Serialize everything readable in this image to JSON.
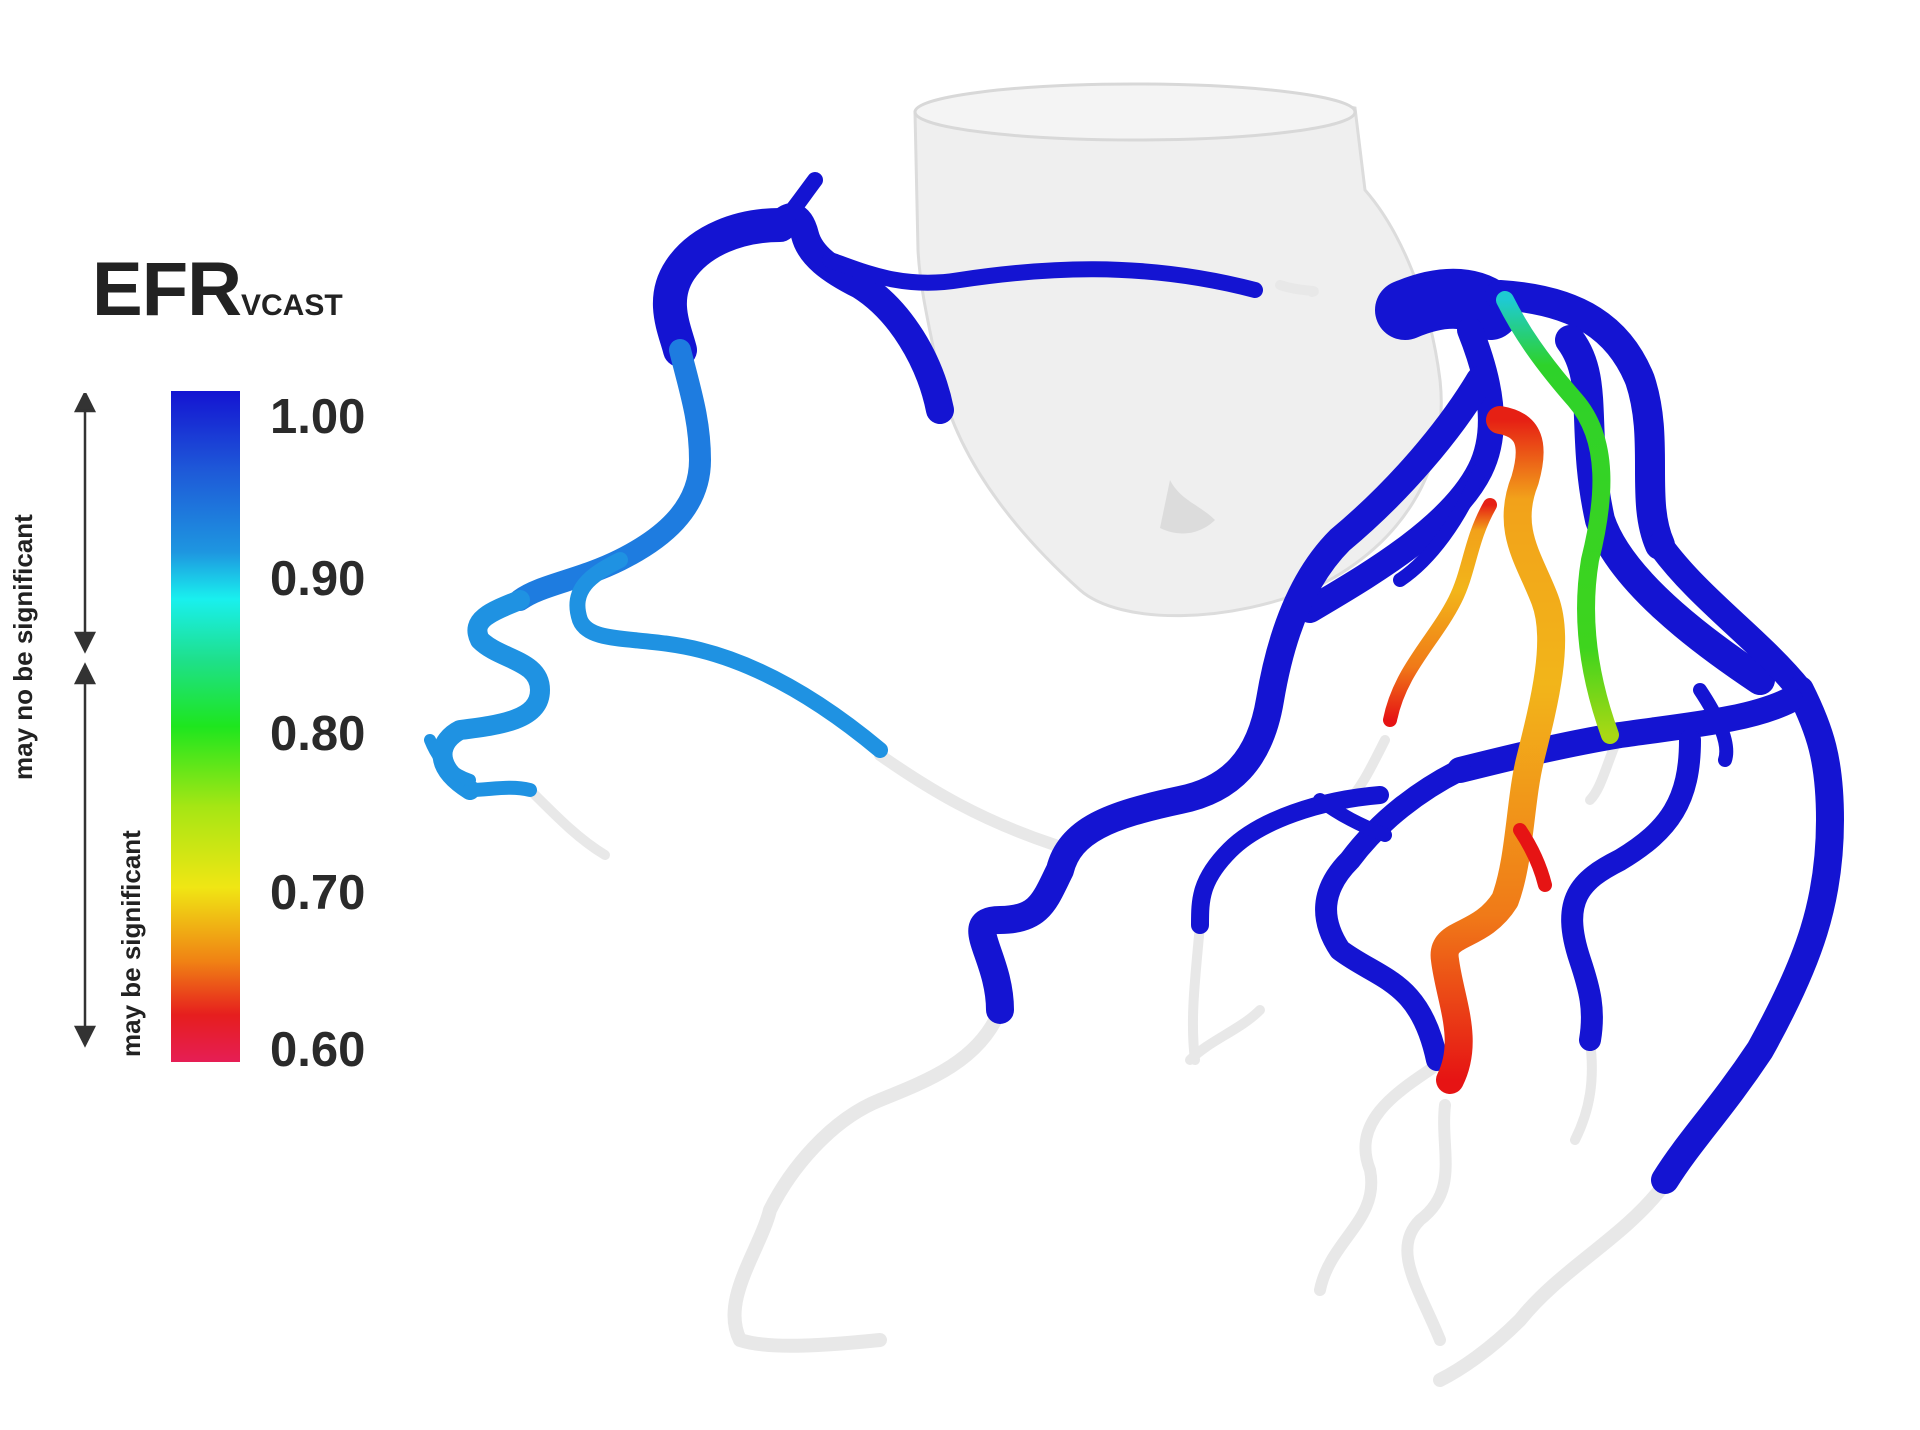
{
  "legend": {
    "title_main": "EFR",
    "title_sub": "VCAST",
    "ticks": [
      "1.00",
      "0.90",
      "0.80",
      "0.70",
      "0.60"
    ],
    "label_upper": "may no be significant",
    "label_lower": "may be  significant",
    "scale_colors": {
      "1.00": "#1414d2",
      "0.95": "#1e78dc",
      "0.90": "#19f0ee",
      "0.85": "#1ee08c",
      "0.80": "#1ee61e",
      "0.75": "#a6e614",
      "0.70": "#f0e614",
      "0.65": "#f08214",
      "0.60": "#e61e55"
    }
  },
  "image": {
    "subject": "3D coronary artery tree colored by EFR value over a translucent heart",
    "vessel_colors": {
      "normal": "#1414d2",
      "rca_distal": "#1f8fe0",
      "green_branch": "#2ed22a",
      "yellow_orange": "#f2b21c",
      "orange": "#f27a1a",
      "red": "#e61414",
      "uncolored_distal": "#e6e6e6",
      "heart": "#eeeeee"
    }
  }
}
